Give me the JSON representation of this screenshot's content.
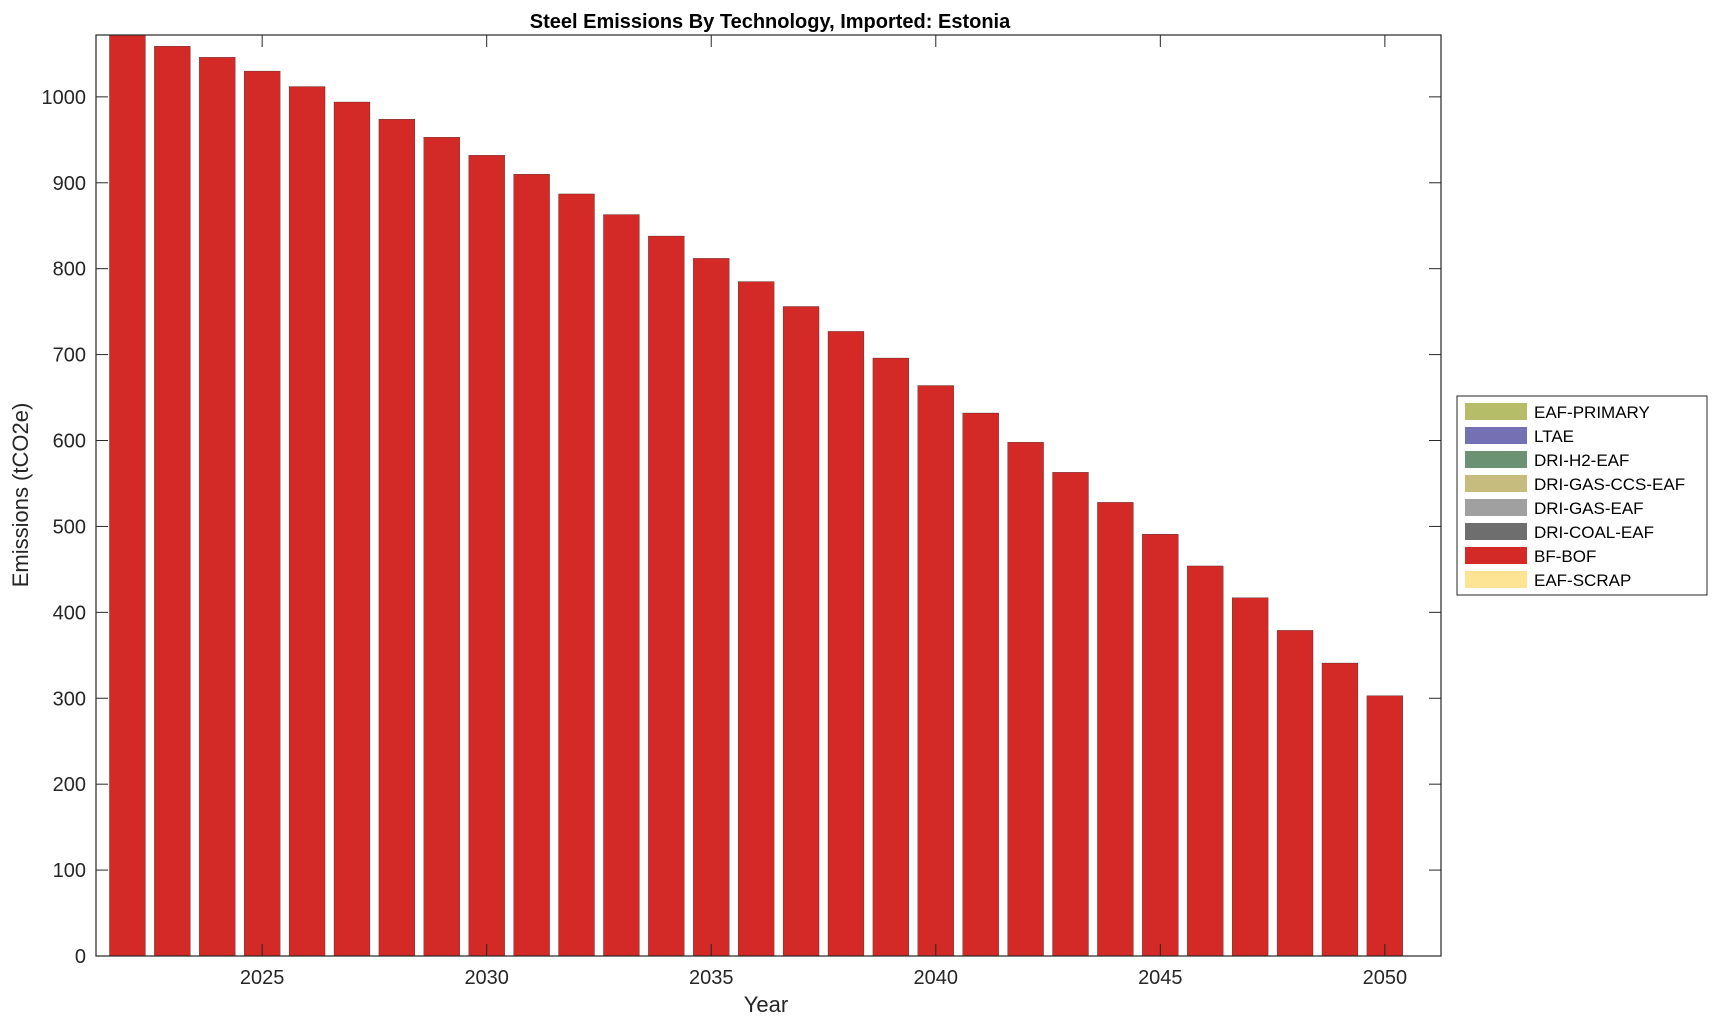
{
  "chart_data": {
    "type": "bar",
    "stacked": true,
    "title": "Steel Emissions By Technology, Imported: Estonia",
    "xlabel": "Year",
    "ylabel": "Emissions (tCO2e)",
    "xlim": [
      2021.3,
      2051.25
    ],
    "ylim": [
      0,
      1072
    ],
    "xticks": [
      2025,
      2030,
      2035,
      2040,
      2045,
      2050
    ],
    "xtick_labels": [
      "2025",
      "2030",
      "2035",
      "2040",
      "2045",
      "2050"
    ],
    "yticks": [
      0,
      100,
      200,
      300,
      400,
      500,
      600,
      700,
      800,
      900,
      1000
    ],
    "ytick_labels": [
      "0",
      "100",
      "200",
      "300",
      "400",
      "500",
      "600",
      "700",
      "800",
      "900",
      "1000"
    ],
    "grid": false,
    "legend_position": "outside-right",
    "categories": [
      2022,
      2023,
      2024,
      2025,
      2026,
      2027,
      2028,
      2029,
      2030,
      2031,
      2032,
      2033,
      2034,
      2035,
      2036,
      2037,
      2038,
      2039,
      2040,
      2041,
      2042,
      2043,
      2044,
      2045,
      2046,
      2047,
      2048,
      2049,
      2050
    ],
    "series": [
      {
        "name": "EAF-PRIMARY",
        "color": "#b5bd68",
        "values": [
          0,
          0,
          0,
          0,
          0,
          0,
          0,
          0,
          0,
          0,
          0,
          0,
          0,
          0,
          0,
          0,
          0,
          0,
          0,
          0,
          0,
          0,
          0,
          0,
          0,
          0,
          0,
          0,
          0
        ]
      },
      {
        "name": "LTAE",
        "color": "#7570b3",
        "values": [
          0,
          0,
          0,
          0,
          0,
          0,
          0,
          0,
          0,
          0,
          0,
          0,
          0,
          0,
          0,
          0,
          0,
          0,
          0,
          0,
          0,
          0,
          0,
          0,
          0,
          0,
          0,
          0,
          0
        ]
      },
      {
        "name": "DRI-H2-EAF",
        "color": "#6b9373",
        "values": [
          0,
          0,
          0,
          0,
          0,
          0,
          0,
          0,
          0,
          0,
          0,
          0,
          0,
          0,
          0,
          0,
          0,
          0,
          0,
          0,
          0,
          0,
          0,
          0,
          0,
          0,
          0,
          0,
          0
        ]
      },
      {
        "name": "DRI-GAS-CCS-EAF",
        "color": "#c5bc7e",
        "values": [
          0,
          0,
          0,
          0,
          0,
          0,
          0,
          0,
          0,
          0,
          0,
          0,
          0,
          0,
          0,
          0,
          0,
          0,
          0,
          0,
          0,
          0,
          0,
          0,
          0,
          0,
          0,
          0,
          0
        ]
      },
      {
        "name": "DRI-GAS-EAF",
        "color": "#a0a0a0",
        "values": [
          0,
          0,
          0,
          0,
          0,
          0,
          0,
          0,
          0,
          0,
          0,
          0,
          0,
          0,
          0,
          0,
          0,
          0,
          0,
          0,
          0,
          0,
          0,
          0,
          0,
          0,
          0,
          0,
          0
        ]
      },
      {
        "name": "DRI-COAL-EAF",
        "color": "#6e6e6e",
        "values": [
          0,
          0,
          0,
          0,
          0,
          0,
          0,
          0,
          0,
          0,
          0,
          0,
          0,
          0,
          0,
          0,
          0,
          0,
          0,
          0,
          0,
          0,
          0,
          0,
          0,
          0,
          0,
          0,
          0
        ]
      },
      {
        "name": "BF-BOF",
        "color": "#d32a27",
        "values": [
          1072,
          1059,
          1046,
          1030,
          1012,
          994,
          974,
          953,
          932,
          910,
          887,
          863,
          838,
          812,
          785,
          756,
          727,
          696,
          664,
          632,
          598,
          563,
          528,
          491,
          454,
          417,
          379,
          341,
          303
        ]
      },
      {
        "name": "EAF-SCRAP",
        "color": "#fde394",
        "values": [
          0,
          0,
          0,
          0,
          0,
          0,
          0,
          0,
          0,
          0,
          0,
          0,
          0,
          0,
          0,
          0,
          0,
          0,
          0,
          0,
          0,
          0,
          0,
          0,
          0,
          0,
          0,
          0,
          0
        ]
      }
    ]
  }
}
